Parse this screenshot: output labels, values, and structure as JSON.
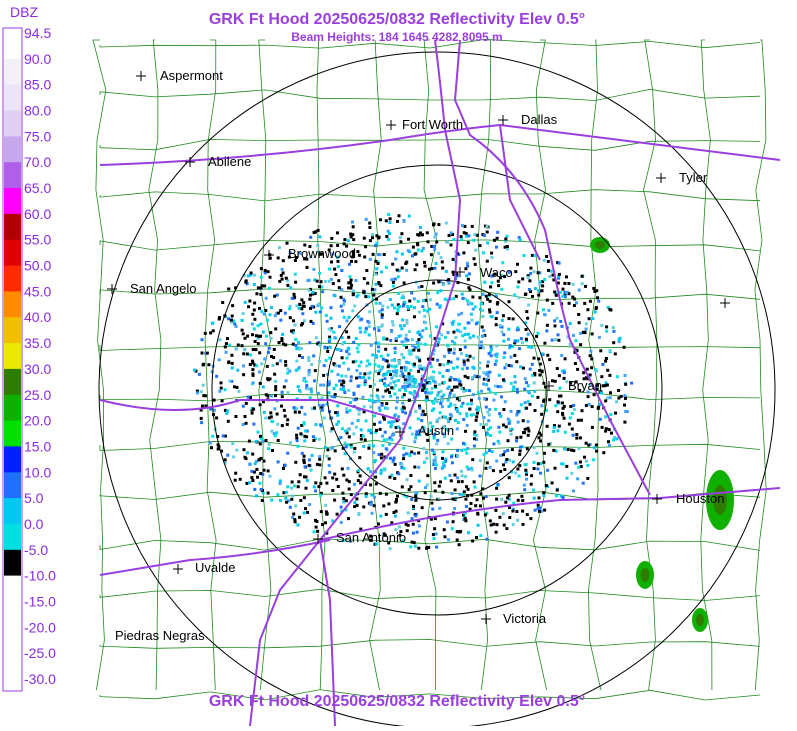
{
  "header": {
    "title": "GRK Ft Hood 20250625/0832 Reflectivity Elev 0.5°",
    "subtitle": "Beam Heights: 184 1645 4282 8095 m"
  },
  "footer": {
    "title": "GRK Ft Hood 20250625/0832 Reflectivity Elev 0.5°"
  },
  "legend": {
    "unit": "DBZ",
    "stops": [
      {
        "label": "94.5",
        "color": "#ffffff"
      },
      {
        "label": "90.0",
        "color": "#f4f0fa"
      },
      {
        "label": "85.0",
        "color": "#ece4f8"
      },
      {
        "label": "80.0",
        "color": "#e0d0f4"
      },
      {
        "label": "75.0",
        "color": "#c8a8ec"
      },
      {
        "label": "70.0",
        "color": "#b060e8"
      },
      {
        "label": "65.0",
        "color": "#ff00ff"
      },
      {
        "label": "60.0",
        "color": "#b00000"
      },
      {
        "label": "55.0",
        "color": "#e00000"
      },
      {
        "label": "50.0",
        "color": "#ff2a00"
      },
      {
        "label": "45.0",
        "color": "#ff8c00"
      },
      {
        "label": "40.0",
        "color": "#f0c000"
      },
      {
        "label": "35.0",
        "color": "#e8e800"
      },
      {
        "label": "30.0",
        "color": "#2e7d00"
      },
      {
        "label": "25.0",
        "color": "#10b000"
      },
      {
        "label": "20.0",
        "color": "#00e000"
      },
      {
        "label": "15.0",
        "color": "#0020ff"
      },
      {
        "label": "10.0",
        "color": "#2070ff"
      },
      {
        "label": "5.0",
        "color": "#00c8f0"
      },
      {
        "label": "0.0",
        "color": "#00e0e0"
      },
      {
        "label": "-5.0",
        "color": "#000000"
      },
      {
        "label": "-10.0",
        "color": "#ffffff"
      },
      {
        "label": "-15.0",
        "color": "#ffffff"
      },
      {
        "label": "-20.0",
        "color": "#ffffff"
      },
      {
        "label": "-25.0",
        "color": "#ffffff"
      },
      {
        "label": "-30.0",
        "color": "#ffffff"
      }
    ]
  },
  "cities": [
    "Aspermont",
    "Abilene",
    "Fort Worth",
    "Dallas",
    "Tyler",
    "Brownwood",
    "Waco",
    "San Angelo",
    "Bryan",
    "Austin",
    "Houston",
    "San Antonio",
    "Uvalde",
    "Victoria",
    "Piedras Negras"
  ]
}
